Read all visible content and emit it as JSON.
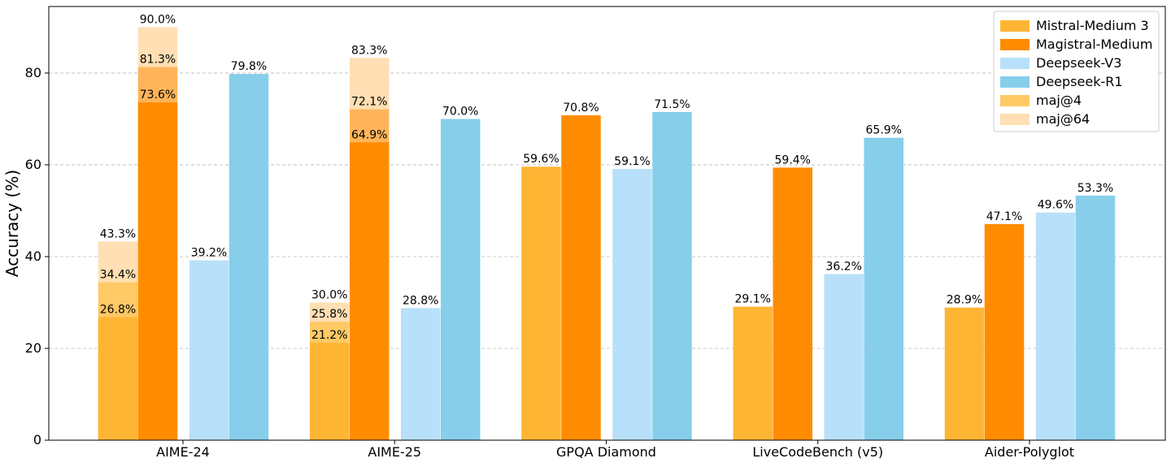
{
  "chart_data": {
    "type": "bar",
    "y_label": "Accuracy (%)",
    "categories": [
      "AIME-24",
      "AIME-25",
      "GPQA Diamond",
      "LiveCodeBench (v5)",
      "Aider-Polyglot"
    ],
    "ylim": [
      0,
      94.5
    ],
    "yticks": [
      0,
      20,
      40,
      60,
      80
    ],
    "grid": true,
    "legend": "upper right",
    "series": [
      {
        "name": "Mistral-Medium 3",
        "color": "#ffb534",
        "values": [
          26.8,
          21.2,
          59.6,
          29.1,
          28.9
        ],
        "value_labels": [
          "26.8%",
          "21.2%",
          "59.6%",
          "29.1%",
          "28.9%"
        ]
      },
      {
        "name": "Magistral-Medium",
        "color": "#ff8c00",
        "values": [
          73.6,
          64.9,
          70.8,
          59.4,
          47.1
        ],
        "value_labels": [
          "73.6%",
          "64.9%",
          "70.8%",
          "59.4%",
          "47.1%"
        ]
      },
      {
        "name": "Deepseek-V3",
        "color": "#b9e0fa",
        "values": [
          39.2,
          28.8,
          59.1,
          36.2,
          49.6
        ],
        "value_labels": [
          "39.2%",
          "28.8%",
          "59.1%",
          "36.2%",
          "49.6%"
        ]
      },
      {
        "name": "Deepseek-R1",
        "color": "#87ceeb",
        "values": [
          79.8,
          70.0,
          71.5,
          65.9,
          53.3
        ],
        "value_labels": [
          "79.8%",
          "70.0%",
          "71.5%",
          "65.9%",
          "53.3%"
        ]
      },
      {
        "name": "maj@4",
        "color": "#ffc966",
        "values": [
          [
            34.4,
            81.3
          ],
          [
            25.8,
            72.1
          ],
          null,
          null,
          null
        ],
        "value_labels": [
          [
            "34.4%",
            "81.3%"
          ],
          [
            "25.8%",
            "72.1%"
          ],
          null,
          null,
          null
        ]
      },
      {
        "name": "maj@64",
        "color": "#ffdfb3",
        "values": [
          [
            43.3,
            90.0
          ],
          [
            30.0,
            83.3
          ],
          null,
          null,
          null
        ],
        "value_labels": [
          [
            "43.3%",
            "90.0%"
          ],
          [
            "30.0%",
            "83.3%"
          ],
          null,
          null,
          null
        ]
      }
    ]
  }
}
